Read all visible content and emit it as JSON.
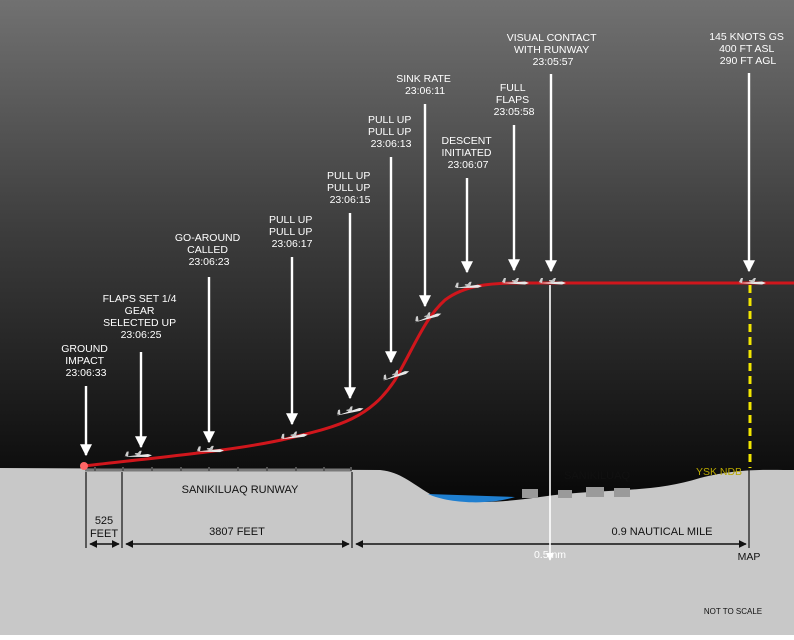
{
  "events": [
    {
      "lines": [
        "GROUND",
        "IMPACT",
        "23:06:33"
      ]
    },
    {
      "lines": [
        "FLAPS SET 1/4",
        "GEAR",
        "SELECTED UP",
        "23:06:25"
      ]
    },
    {
      "lines": [
        "GO-AROUND",
        "CALLED",
        "23:06:23"
      ]
    },
    {
      "lines": [
        "PULL UP",
        "PULL UP",
        "23:06:17"
      ]
    },
    {
      "lines": [
        "PULL UP",
        "PULL UP",
        "23:06:15"
      ]
    },
    {
      "lines": [
        "PULL UP",
        "PULL UP",
        "23:06:13"
      ]
    },
    {
      "lines": [
        "SINK RATE",
        "23:06:11"
      ]
    },
    {
      "lines": [
        "DESCENT",
        "INITIATED",
        "23:06:07"
      ]
    },
    {
      "lines": [
        "FULL",
        "FLAPS",
        "23:05:58"
      ]
    },
    {
      "lines": [
        "VISUAL CONTACT",
        "WITH RUNWAY",
        "23:05:57"
      ]
    },
    {
      "lines": [
        "145 KNOTS GS",
        "400 FT ASL",
        "290 FT AGL"
      ]
    }
  ],
  "labels": {
    "runway": "SANIKILUAQ RUNWAY",
    "town": "SANIKILUAQ",
    "ndb": "YSK NDB",
    "note": "NOT TO SCALE"
  },
  "distances": {
    "d1_line1": "525",
    "d1_line2": "FEET",
    "d2": "3807 FEET",
    "d3": "0.9 NAUTICAL MILE",
    "d4": "0.5 nm",
    "map": "MAP"
  },
  "colors": {
    "sky_top": "#6e6e6e",
    "sky_bottom": "#050505",
    "ground": "#c8c8c8",
    "flight_path": "#d0161c",
    "ndb_line": "#f2e600",
    "water": "#1f7fd0"
  }
}
